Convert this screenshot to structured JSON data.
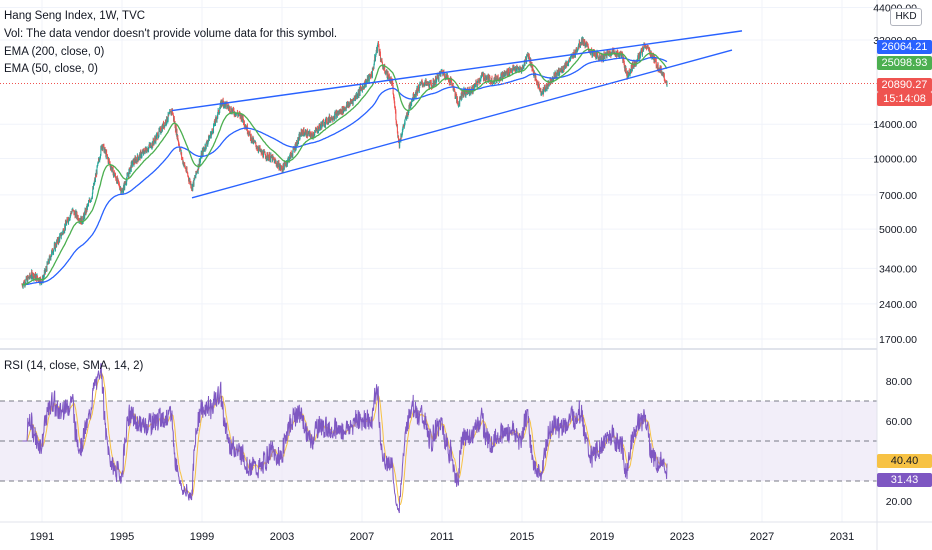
{
  "header": {
    "title": "Hang Seng Index, 1W, TVC",
    "vol_note": "Vol: The data vendor doesn't provide volume data for this symbol.",
    "ema200_label": "EMA (200, close, 0)",
    "ema50_label": "EMA (50, close, 0)",
    "rsi_label": "RSI (14, close, SMA, 14, 2)",
    "currency": "HKD"
  },
  "colors": {
    "background": "#ffffff",
    "grid": "#f0f3fa",
    "up_candle": "#26a69a",
    "down_candle": "#ef5350",
    "ema50": "#4caf50",
    "ema200": "#2962ff",
    "trendline": "#2962ff",
    "rsi": "#7e57c2",
    "rsi_ma": "#f7c244",
    "rsi_band": "#ede7f6",
    "last_price_line": "#ef5350"
  },
  "price_badges": {
    "ema50": {
      "text": "26064.21",
      "color": "#2962ff"
    },
    "ema200": {
      "text": "25098.93",
      "color": "#4caf50"
    },
    "last": {
      "text": "20890.27",
      "color": "#ef5350"
    },
    "countdown": {
      "text": "15:14:08",
      "color": "#ef5350"
    }
  },
  "rsi_badges": {
    "ma": {
      "text": "40.40",
      "color": "#f7c244"
    },
    "rsi": {
      "text": "31.43",
      "color": "#7e57c2"
    }
  },
  "chart_data": [
    {
      "type": "candlestick",
      "title": "Hang Seng Index, 1W, TVC",
      "scale": "log",
      "x_ticks": [
        "1991",
        "1995",
        "1999",
        "2003",
        "2007",
        "2011",
        "2015",
        "2019",
        "2023",
        "2027",
        "2031"
      ],
      "y_ticks": [
        "44000.00",
        "32000.00",
        "14000.00",
        "10000.00",
        "7000.00",
        "5000.00",
        "3400.00",
        "2400.00",
        "1700.00"
      ],
      "ylim": [
        1550,
        46000
      ],
      "series": [
        {
          "name": "Hang Seng Index",
          "points": [
            [
              1990.0,
              2900
            ],
            [
              1990.5,
              3200
            ],
            [
              1991.0,
              3000
            ],
            [
              1991.5,
              4000
            ],
            [
              1992.0,
              4800
            ],
            [
              1992.5,
              6000
            ],
            [
              1993.0,
              5400
            ],
            [
              1993.5,
              7000
            ],
            [
              1994.0,
              11500
            ],
            [
              1994.5,
              9000
            ],
            [
              1995.0,
              7200
            ],
            [
              1995.5,
              9500
            ],
            [
              1996.0,
              10500
            ],
            [
              1996.5,
              11500
            ],
            [
              1997.0,
              13500
            ],
            [
              1997.5,
              16000
            ],
            [
              1998.0,
              10000
            ],
            [
              1998.5,
              7500
            ],
            [
              1999.0,
              10500
            ],
            [
              1999.5,
              13000
            ],
            [
              2000.0,
              17500
            ],
            [
              2000.5,
              16000
            ],
            [
              2001.0,
              15000
            ],
            [
              2001.5,
              12000
            ],
            [
              2002.0,
              10500
            ],
            [
              2002.5,
              10000
            ],
            [
              2003.0,
              9000
            ],
            [
              2003.5,
              10500
            ],
            [
              2004.0,
              13000
            ],
            [
              2004.5,
              12500
            ],
            [
              2005.0,
              14000
            ],
            [
              2005.5,
              15000
            ],
            [
              2006.0,
              16000
            ],
            [
              2006.5,
              17500
            ],
            [
              2007.0,
              20000
            ],
            [
              2007.5,
              23000
            ],
            [
              2007.8,
              31000
            ],
            [
              2008.0,
              25000
            ],
            [
              2008.5,
              21000
            ],
            [
              2008.85,
              11500
            ],
            [
              2009.0,
              13000
            ],
            [
              2009.5,
              18000
            ],
            [
              2010.0,
              21000
            ],
            [
              2010.5,
              20500
            ],
            [
              2011.0,
              23500
            ],
            [
              2011.5,
              21000
            ],
            [
              2011.8,
              17000
            ],
            [
              2012.0,
              19000
            ],
            [
              2012.5,
              19500
            ],
            [
              2013.0,
              22500
            ],
            [
              2013.5,
              21500
            ],
            [
              2014.0,
              22500
            ],
            [
              2014.5,
              24000
            ],
            [
              2015.0,
              24000
            ],
            [
              2015.3,
              28000
            ],
            [
              2015.7,
              21500
            ],
            [
              2016.0,
              19000
            ],
            [
              2016.5,
              22000
            ],
            [
              2017.0,
              24000
            ],
            [
              2017.5,
              27000
            ],
            [
              2018.0,
              32000
            ],
            [
              2018.5,
              28000
            ],
            [
              2019.0,
              27000
            ],
            [
              2019.5,
              28500
            ],
            [
              2020.0,
              27500
            ],
            [
              2020.25,
              22500
            ],
            [
              2020.5,
              24500
            ],
            [
              2021.0,
              28500
            ],
            [
              2021.15,
              30500
            ],
            [
              2021.5,
              27500
            ],
            [
              2021.8,
              24500
            ],
            [
              2022.0,
              23500
            ],
            [
              2022.25,
              20890
            ]
          ]
        },
        {
          "name": "EMA (50, close, 0)",
          "value": 26064.21
        },
        {
          "name": "EMA (200, close, 0)",
          "value": 25098.93
        }
      ],
      "trendlines": [
        {
          "from": [
            1997.5,
            16000
          ],
          "to": [
            2026.0,
            35000
          ]
        },
        {
          "from": [
            1998.5,
            6800
          ],
          "to": [
            2025.5,
            29000
          ]
        }
      ],
      "last_price": 20890.27
    },
    {
      "type": "line",
      "title": "RSI (14, close, SMA, 14, 2)",
      "y_ticks": [
        "80.00",
        "60.00",
        "20.00"
      ],
      "ylim": [
        14,
        88
      ],
      "bands": [
        70,
        50,
        30
      ],
      "series": [
        {
          "name": "RSI",
          "last": 31.43
        },
        {
          "name": "RSI-based MA",
          "last": 40.4
        }
      ]
    }
  ]
}
